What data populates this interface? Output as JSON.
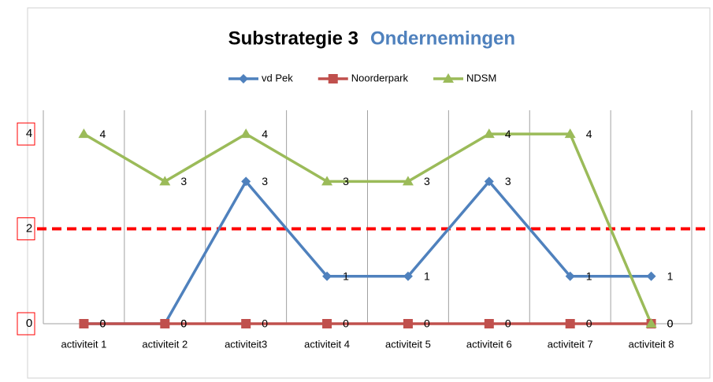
{
  "chart_data": {
    "type": "line",
    "title": "Substrategie 3",
    "subtitle": "Ondernemingen",
    "categories": [
      "activiteit 1",
      "activiteit 2",
      "activiteit3",
      "activiteit 4",
      "activiteit 5",
      "activiteit 6",
      "activiteit 7",
      "activiteit 8"
    ],
    "series": [
      {
        "name": "vd Pek",
        "color": "#4f81bd",
        "marker": "diamond",
        "values": [
          0,
          0,
          3,
          1,
          1,
          3,
          1,
          1
        ]
      },
      {
        "name": "Noorderpark",
        "color": "#c0504d",
        "marker": "square",
        "values": [
          0,
          0,
          0,
          0,
          0,
          0,
          0,
          0
        ]
      },
      {
        "name": "NDSM",
        "color": "#9bbb59",
        "marker": "triangle",
        "values": [
          4,
          3,
          4,
          3,
          3,
          4,
          4,
          0
        ]
      }
    ],
    "ylim": [
      0,
      4.5
    ],
    "yticks": [
      0,
      2,
      4
    ],
    "reference_line": {
      "value": 2,
      "color": "#ff0000"
    },
    "legend": "top",
    "vertical_grid": true
  }
}
